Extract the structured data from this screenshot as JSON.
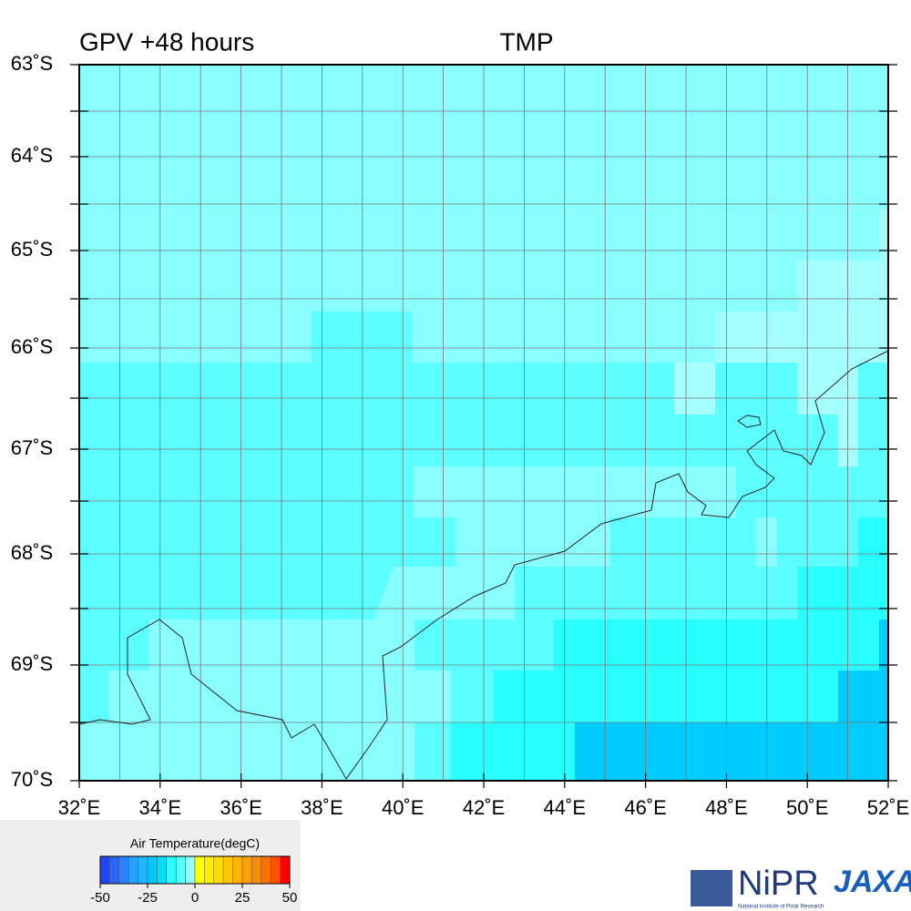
{
  "map": {
    "title_left": "GPV +48 hours",
    "title_right": "TMP",
    "lat_labels": [
      "63˚S",
      "64˚S",
      "65˚S",
      "66˚S",
      "67˚S",
      "68˚S",
      "69˚S",
      "70˚S"
    ],
    "lon_labels": [
      "32˚E",
      "34˚E",
      "36˚E",
      "38˚E",
      "40˚E",
      "42˚E",
      "44˚E",
      "46˚E",
      "48˚E",
      "50˚E",
      "52˚E"
    ]
  },
  "legend": {
    "title": "Air Temperature(degC)",
    "range": [
      -50,
      50
    ],
    "ticks": [
      -50,
      -25,
      0,
      25,
      50
    ],
    "colors": [
      "#1e46ff",
      "#2864ff",
      "#2882ff",
      "#28a0ff",
      "#1eb4ff",
      "#00c8ff",
      "#00e1ff",
      "#28ffff",
      "#5affff",
      "#96ffff",
      "#ffff00",
      "#fff000",
      "#ffdc00",
      "#ffc800",
      "#ffb400",
      "#ffa000",
      "#ff8c00",
      "#ff6e00",
      "#ff5000",
      "#ff0000"
    ]
  },
  "logos": {
    "nipr": "NiPR",
    "nipr_sub": "National Institute of Polar Research",
    "jaxa": "JAXA"
  }
}
